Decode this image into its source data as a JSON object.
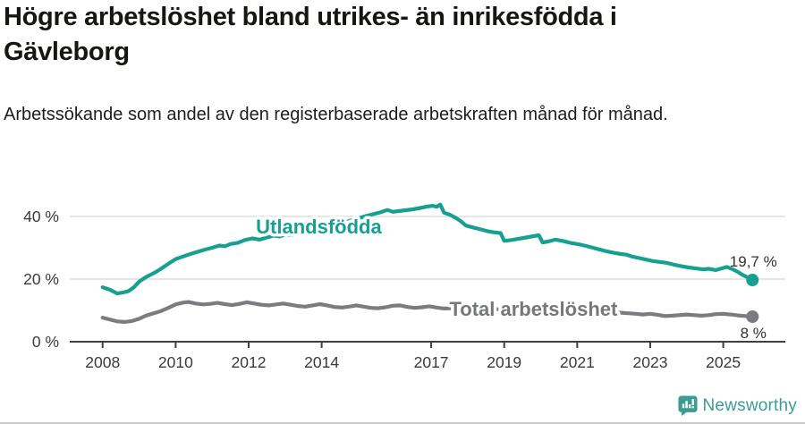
{
  "header": {
    "title": "Högre arbetslöshet bland utrikes- än inrikesfödda i Gävleborg",
    "subtitle": "Arbetssökande som andel av den registerbaserade arbetskraften månad för månad."
  },
  "footer": {
    "brand": "Newsworthy"
  },
  "colors": {
    "accent_teal": "#17a091",
    "series_gray": "#7b7c80",
    "label_gray": "#76777b",
    "grid": "#dedede",
    "axis": "#404040",
    "tick_text": "#3a3a3a",
    "annotation_text": "#333333",
    "brand_teal": "#3c9c94",
    "title_text": "#161613"
  },
  "chart_data": {
    "type": "line",
    "title": "Högre arbetslöshet bland utrikes- än inrikesfödda i Gävleborg",
    "subtitle": "Arbetssökande som andel av den registerbaserade arbetskraften månad för månad.",
    "unit": "%",
    "grid": true,
    "legend_position": "inline-labels",
    "x_axis": {
      "ticks": [
        2008,
        2010,
        2012,
        2014,
        2017,
        2019,
        2021,
        2023,
        2025
      ],
      "range": [
        2007.1,
        2026.7
      ]
    },
    "y_axis": {
      "ticks": [
        0,
        20,
        40
      ],
      "tick_labels": [
        "0 %",
        "20 %",
        "40 %"
      ],
      "range": [
        0,
        52
      ]
    },
    "series": [
      {
        "id": "utlandsfodda",
        "name": "Utlandsfödda",
        "color": "#17a091",
        "end_label": "19,7 %",
        "end_label_side": "above",
        "label_anchor": {
          "x": 2012.2,
          "y_value": 34.6
        },
        "points": [
          [
            2008.0,
            17.4
          ],
          [
            2008.2,
            16.6
          ],
          [
            2008.4,
            15.4
          ],
          [
            2008.55,
            15.7
          ],
          [
            2008.7,
            16.1
          ],
          [
            2008.85,
            17.3
          ],
          [
            2009.0,
            19.2
          ],
          [
            2009.2,
            20.7
          ],
          [
            2009.4,
            21.9
          ],
          [
            2009.6,
            23.3
          ],
          [
            2009.8,
            24.9
          ],
          [
            2010.0,
            26.4
          ],
          [
            2010.2,
            27.2
          ],
          [
            2010.4,
            28.0
          ],
          [
            2010.6,
            28.7
          ],
          [
            2010.8,
            29.4
          ],
          [
            2011.0,
            30.0
          ],
          [
            2011.2,
            30.7
          ],
          [
            2011.35,
            30.5
          ],
          [
            2011.5,
            31.2
          ],
          [
            2011.7,
            31.6
          ],
          [
            2011.9,
            32.5
          ],
          [
            2012.1,
            33.0
          ],
          [
            2012.3,
            32.6
          ],
          [
            2012.5,
            33.3
          ],
          [
            2012.7,
            33.9
          ],
          [
            2012.85,
            33.6
          ],
          [
            2013.0,
            34.3
          ],
          [
            2013.2,
            34.1
          ],
          [
            2013.4,
            34.7
          ],
          [
            2013.6,
            35.2
          ],
          [
            2013.8,
            35.7
          ],
          [
            2014.0,
            36.3
          ],
          [
            2014.2,
            36.8
          ],
          [
            2014.4,
            37.4
          ],
          [
            2014.6,
            38.0
          ],
          [
            2014.8,
            38.7
          ],
          [
            2015.0,
            39.4
          ],
          [
            2015.2,
            40.1
          ],
          [
            2015.4,
            40.7
          ],
          [
            2015.6,
            41.3
          ],
          [
            2015.8,
            42.1
          ],
          [
            2015.95,
            41.5
          ],
          [
            2016.1,
            41.7
          ],
          [
            2016.3,
            42.0
          ],
          [
            2016.5,
            42.3
          ],
          [
            2016.7,
            42.7
          ],
          [
            2016.9,
            43.2
          ],
          [
            2017.05,
            43.4
          ],
          [
            2017.15,
            43.1
          ],
          [
            2017.25,
            43.8
          ],
          [
            2017.35,
            41.2
          ],
          [
            2017.5,
            40.6
          ],
          [
            2017.65,
            39.7
          ],
          [
            2017.8,
            38.6
          ],
          [
            2017.95,
            37.1
          ],
          [
            2018.15,
            36.5
          ],
          [
            2018.35,
            35.9
          ],
          [
            2018.55,
            35.3
          ],
          [
            2018.75,
            34.9
          ],
          [
            2018.9,
            34.7
          ],
          [
            2019.0,
            32.2
          ],
          [
            2019.2,
            32.5
          ],
          [
            2019.4,
            32.9
          ],
          [
            2019.6,
            33.3
          ],
          [
            2019.8,
            33.7
          ],
          [
            2019.95,
            34.0
          ],
          [
            2020.05,
            31.7
          ],
          [
            2020.2,
            32.0
          ],
          [
            2020.4,
            32.6
          ],
          [
            2020.6,
            32.2
          ],
          [
            2020.8,
            31.6
          ],
          [
            2021.0,
            31.2
          ],
          [
            2021.2,
            30.7
          ],
          [
            2021.4,
            30.1
          ],
          [
            2021.6,
            29.5
          ],
          [
            2021.8,
            28.9
          ],
          [
            2022.0,
            28.4
          ],
          [
            2022.2,
            28.0
          ],
          [
            2022.35,
            27.8
          ],
          [
            2022.5,
            27.2
          ],
          [
            2022.7,
            26.7
          ],
          [
            2022.9,
            26.2
          ],
          [
            2023.05,
            25.8
          ],
          [
            2023.25,
            25.5
          ],
          [
            2023.45,
            25.2
          ],
          [
            2023.65,
            24.6
          ],
          [
            2023.85,
            24.1
          ],
          [
            2024.05,
            23.7
          ],
          [
            2024.25,
            23.4
          ],
          [
            2024.45,
            23.1
          ],
          [
            2024.6,
            23.3
          ],
          [
            2024.8,
            22.9
          ],
          [
            2024.95,
            23.4
          ],
          [
            2025.1,
            23.9
          ],
          [
            2025.25,
            23.2
          ],
          [
            2025.4,
            22.3
          ],
          [
            2025.55,
            21.2
          ],
          [
            2025.7,
            20.4
          ],
          [
            2025.8,
            19.7
          ]
        ]
      },
      {
        "id": "total",
        "name": "Total arbetslöshet",
        "color": "#7b7c80",
        "end_label": "8 %",
        "end_label_side": "below",
        "label_anchor": {
          "x": 2017.5,
          "y_value": 8.3
        },
        "points": [
          [
            2008.0,
            7.7
          ],
          [
            2008.2,
            7.1
          ],
          [
            2008.4,
            6.5
          ],
          [
            2008.6,
            6.3
          ],
          [
            2008.8,
            6.6
          ],
          [
            2009.0,
            7.3
          ],
          [
            2009.2,
            8.4
          ],
          [
            2009.4,
            9.1
          ],
          [
            2009.6,
            9.8
          ],
          [
            2009.8,
            10.8
          ],
          [
            2010.0,
            11.9
          ],
          [
            2010.2,
            12.5
          ],
          [
            2010.35,
            12.7
          ],
          [
            2010.55,
            12.2
          ],
          [
            2010.75,
            11.9
          ],
          [
            2010.95,
            12.1
          ],
          [
            2011.15,
            12.4
          ],
          [
            2011.35,
            12.0
          ],
          [
            2011.55,
            11.7
          ],
          [
            2011.75,
            12.1
          ],
          [
            2011.95,
            12.6
          ],
          [
            2012.15,
            12.2
          ],
          [
            2012.35,
            11.8
          ],
          [
            2012.55,
            11.6
          ],
          [
            2012.75,
            11.9
          ],
          [
            2012.95,
            12.2
          ],
          [
            2013.15,
            11.8
          ],
          [
            2013.35,
            11.4
          ],
          [
            2013.55,
            11.2
          ],
          [
            2013.75,
            11.6
          ],
          [
            2013.95,
            12.0
          ],
          [
            2014.15,
            11.6
          ],
          [
            2014.35,
            11.1
          ],
          [
            2014.55,
            10.9
          ],
          [
            2014.75,
            11.2
          ],
          [
            2014.95,
            11.6
          ],
          [
            2015.15,
            11.2
          ],
          [
            2015.35,
            10.8
          ],
          [
            2015.55,
            10.7
          ],
          [
            2015.75,
            11.0
          ],
          [
            2015.95,
            11.5
          ],
          [
            2016.15,
            11.6
          ],
          [
            2016.35,
            11.1
          ],
          [
            2016.55,
            10.8
          ],
          [
            2016.75,
            11.0
          ],
          [
            2016.95,
            11.3
          ],
          [
            2017.15,
            10.9
          ],
          [
            2017.35,
            10.6
          ],
          [
            2017.55,
            10.7
          ],
          [
            2017.75,
            10.9
          ],
          [
            2018.0,
            10.8
          ],
          [
            2018.3,
            10.5
          ],
          [
            2018.6,
            10.3
          ],
          [
            2018.9,
            10.4
          ],
          [
            2019.2,
            10.2
          ],
          [
            2019.5,
            10.0
          ],
          [
            2019.8,
            10.2
          ],
          [
            2020.0,
            10.1
          ],
          [
            2020.3,
            10.8
          ],
          [
            2020.6,
            10.9
          ],
          [
            2020.9,
            10.6
          ],
          [
            2021.2,
            10.3
          ],
          [
            2021.5,
            9.9
          ],
          [
            2021.8,
            9.6
          ],
          [
            2022.1,
            9.3
          ],
          [
            2022.4,
            9.1
          ],
          [
            2022.6,
            8.9
          ],
          [
            2022.8,
            8.7
          ],
          [
            2023.0,
            8.9
          ],
          [
            2023.2,
            8.6
          ],
          [
            2023.4,
            8.2
          ],
          [
            2023.6,
            8.3
          ],
          [
            2023.8,
            8.5
          ],
          [
            2024.0,
            8.7
          ],
          [
            2024.2,
            8.5
          ],
          [
            2024.4,
            8.3
          ],
          [
            2024.6,
            8.5
          ],
          [
            2024.8,
            8.8
          ],
          [
            2025.0,
            8.9
          ],
          [
            2025.2,
            8.7
          ],
          [
            2025.4,
            8.4
          ],
          [
            2025.6,
            8.2
          ],
          [
            2025.8,
            8.0
          ]
        ]
      }
    ]
  }
}
